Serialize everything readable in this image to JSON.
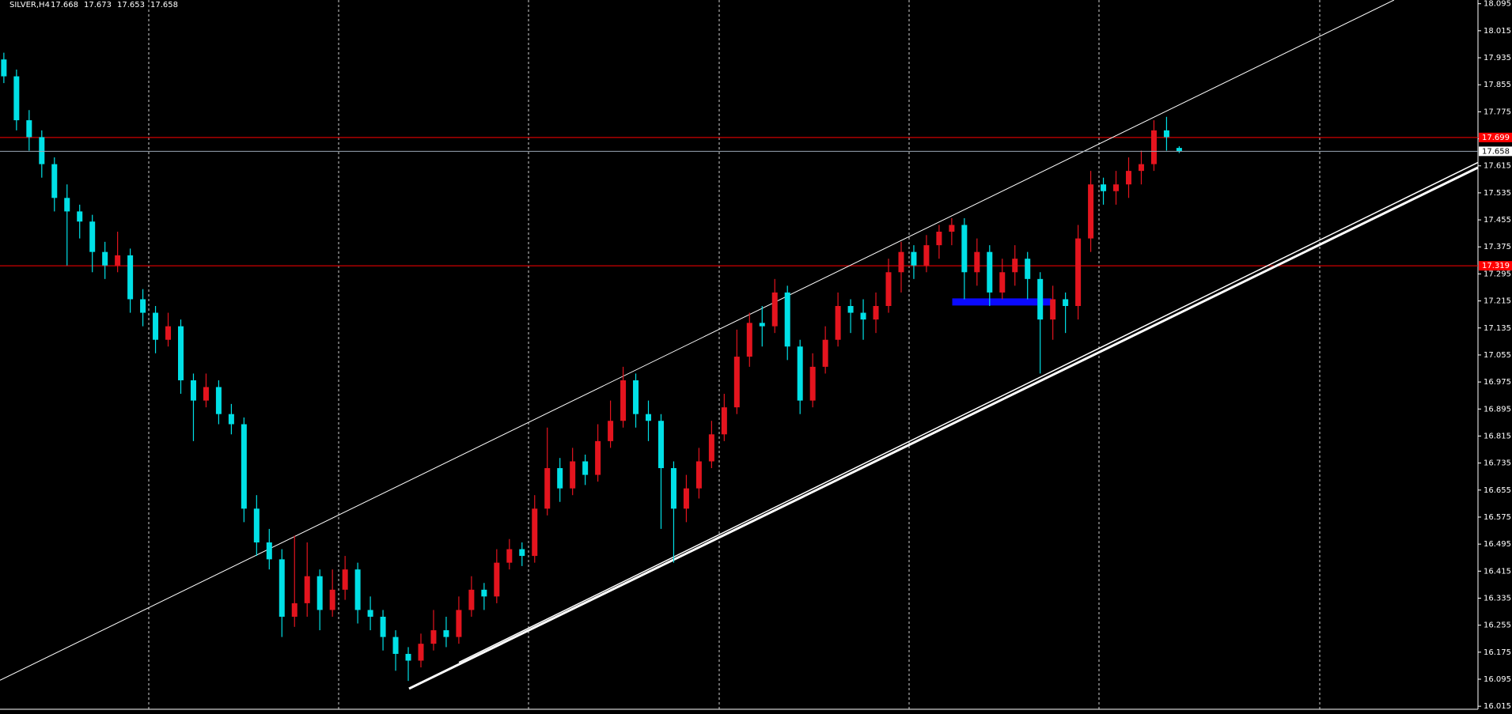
{
  "chart_data": {
    "type": "candlestick",
    "title": "SILVER,H4",
    "up_color": "#e4141e",
    "down_color": "#00e0e6",
    "ylim": [
      15.992,
      18.106
    ],
    "yticks": [
      16.015,
      16.095,
      16.175,
      16.255,
      16.335,
      16.415,
      16.495,
      16.575,
      16.655,
      16.735,
      16.815,
      16.895,
      16.975,
      17.055,
      17.135,
      17.215,
      17.295,
      17.375,
      17.455,
      17.535,
      17.615,
      17.695,
      17.775,
      17.855,
      17.935,
      18.015,
      18.095
    ],
    "xlim": [
      -0.305,
      116.64
    ],
    "candles": [
      [
        17.93,
        17.95,
        17.86,
        17.88
      ],
      [
        17.88,
        17.9,
        17.72,
        17.75
      ],
      [
        17.75,
        17.78,
        17.66,
        17.7
      ],
      [
        17.7,
        17.72,
        17.58,
        17.62
      ],
      [
        17.62,
        17.64,
        17.48,
        17.52
      ],
      [
        17.52,
        17.56,
        17.32,
        17.48
      ],
      [
        17.48,
        17.5,
        17.4,
        17.45
      ],
      [
        17.45,
        17.47,
        17.3,
        17.36
      ],
      [
        17.36,
        17.39,
        17.28,
        17.32
      ],
      [
        17.32,
        17.42,
        17.3,
        17.35
      ],
      [
        17.35,
        17.37,
        17.18,
        17.22
      ],
      [
        17.22,
        17.25,
        17.14,
        17.18
      ],
      [
        17.18,
        17.2,
        17.06,
        17.1
      ],
      [
        17.1,
        17.18,
        17.08,
        17.14
      ],
      [
        17.14,
        17.16,
        16.94,
        16.98
      ],
      [
        16.98,
        17,
        16.8,
        16.92
      ],
      [
        16.92,
        17,
        16.9,
        16.96
      ],
      [
        16.96,
        16.98,
        16.85,
        16.88
      ],
      [
        16.88,
        16.91,
        16.82,
        16.85
      ],
      [
        16.85,
        16.87,
        16.56,
        16.6
      ],
      [
        16.6,
        16.64,
        16.46,
        16.5
      ],
      [
        16.5,
        16.54,
        16.42,
        16.45
      ],
      [
        16.45,
        16.48,
        16.22,
        16.28
      ],
      [
        16.28,
        16.52,
        16.25,
        16.32
      ],
      [
        16.32,
        16.5,
        16.28,
        16.4
      ],
      [
        16.4,
        16.42,
        16.24,
        16.3
      ],
      [
        16.3,
        16.42,
        16.28,
        16.36
      ],
      [
        16.36,
        16.46,
        16.33,
        16.42
      ],
      [
        16.42,
        16.44,
        16.26,
        16.3
      ],
      [
        16.3,
        16.34,
        16.24,
        16.28
      ],
      [
        16.28,
        16.3,
        16.18,
        16.22
      ],
      [
        16.22,
        16.24,
        16.12,
        16.17
      ],
      [
        16.17,
        16.19,
        16.09,
        16.15
      ],
      [
        16.15,
        16.23,
        16.13,
        16.2
      ],
      [
        16.2,
        16.3,
        16.18,
        16.24
      ],
      [
        16.24,
        16.28,
        16.19,
        16.22
      ],
      [
        16.22,
        16.34,
        16.2,
        16.3
      ],
      [
        16.3,
        16.4,
        16.28,
        16.36
      ],
      [
        16.36,
        16.38,
        16.3,
        16.34
      ],
      [
        16.34,
        16.48,
        16.32,
        16.44
      ],
      [
        16.44,
        16.51,
        16.42,
        16.48
      ],
      [
        16.48,
        16.5,
        16.43,
        16.46
      ],
      [
        16.46,
        16.64,
        16.44,
        16.6
      ],
      [
        16.6,
        16.84,
        16.58,
        16.72
      ],
      [
        16.72,
        16.75,
        16.62,
        16.66
      ],
      [
        16.66,
        16.78,
        16.64,
        16.74
      ],
      [
        16.74,
        16.76,
        16.67,
        16.7
      ],
      [
        16.7,
        16.85,
        16.68,
        16.8
      ],
      [
        16.8,
        16.92,
        16.78,
        16.86
      ],
      [
        16.86,
        17.02,
        16.84,
        16.98
      ],
      [
        16.98,
        17,
        16.84,
        16.88
      ],
      [
        16.88,
        16.92,
        16.8,
        16.86
      ],
      [
        16.86,
        16.88,
        16.54,
        16.72
      ],
      [
        16.72,
        16.74,
        16.44,
        16.6
      ],
      [
        16.6,
        16.7,
        16.56,
        16.66
      ],
      [
        16.66,
        16.78,
        16.63,
        16.74
      ],
      [
        16.74,
        16.86,
        16.72,
        16.82
      ],
      [
        16.82,
        16.94,
        16.8,
        16.9
      ],
      [
        16.9,
        17.13,
        16.88,
        17.05
      ],
      [
        17.05,
        17.18,
        17.02,
        17.15
      ],
      [
        17.15,
        17.2,
        17.08,
        17.14
      ],
      [
        17.14,
        17.28,
        17.12,
        17.24
      ],
      [
        17.24,
        17.26,
        17.04,
        17.08
      ],
      [
        17.08,
        17.1,
        16.88,
        16.92
      ],
      [
        16.92,
        17.06,
        16.9,
        17.02
      ],
      [
        17.02,
        17.14,
        17,
        17.1
      ],
      [
        17.1,
        17.24,
        17.08,
        17.2
      ],
      [
        17.2,
        17.22,
        17.12,
        17.18
      ],
      [
        17.18,
        17.22,
        17.1,
        17.16
      ],
      [
        17.16,
        17.24,
        17.12,
        17.2
      ],
      [
        17.2,
        17.34,
        17.18,
        17.3
      ],
      [
        17.3,
        17.39,
        17.24,
        17.36
      ],
      [
        17.36,
        17.38,
        17.28,
        17.32
      ],
      [
        17.32,
        17.41,
        17.3,
        17.38
      ],
      [
        17.38,
        17.44,
        17.34,
        17.42
      ],
      [
        17.42,
        17.46,
        17.38,
        17.44
      ],
      [
        17.44,
        17.46,
        17.22,
        17.3
      ],
      [
        17.3,
        17.4,
        17.26,
        17.36
      ],
      [
        17.36,
        17.38,
        17.2,
        17.24
      ],
      [
        17.24,
        17.34,
        17.22,
        17.3
      ],
      [
        17.3,
        17.38,
        17.26,
        17.34
      ],
      [
        17.34,
        17.36,
        17.22,
        17.28
      ],
      [
        17.28,
        17.3,
        17,
        17.16
      ],
      [
        17.16,
        17.26,
        17.1,
        17.22
      ],
      [
        17.22,
        17.24,
        17.12,
        17.2
      ],
      [
        17.2,
        17.44,
        17.16,
        17.4
      ],
      [
        17.4,
        17.6,
        17.36,
        17.56
      ],
      [
        17.56,
        17.58,
        17.5,
        17.54
      ],
      [
        17.54,
        17.6,
        17.5,
        17.56
      ],
      [
        17.56,
        17.64,
        17.52,
        17.6
      ],
      [
        17.6,
        17.66,
        17.56,
        17.62
      ],
      [
        17.62,
        17.75,
        17.6,
        17.72
      ],
      [
        17.72,
        17.76,
        17.66,
        17.7
      ],
      [
        17.668,
        17.673,
        17.653,
        17.658
      ]
    ],
    "levels": [
      {
        "value": 17.699,
        "color": "#ff0000"
      },
      {
        "value": 17.319,
        "color": "#ff0000"
      }
    ],
    "trendlines": [
      {
        "x": [
          -0.3,
          110.0
        ],
        "y": [
          16.092,
          18.106
        ],
        "color": "#ffffff",
        "width": 1
      },
      {
        "x": [
          32.06,
          116.64
        ],
        "y": [
          16.067,
          17.61
        ],
        "color": "#ffffff",
        "width": 3
      },
      {
        "x": [
          36.0,
          116.64
        ],
        "y": [
          16.145,
          17.625
        ],
        "color": "#ffffff",
        "width": 1.5
      }
    ],
    "segments": [
      {
        "x": [
          75.04,
          82.9
        ],
        "y": [
          17.212,
          17.212
        ],
        "color": "#0a0aff",
        "width": 9
      }
    ]
  }
}
